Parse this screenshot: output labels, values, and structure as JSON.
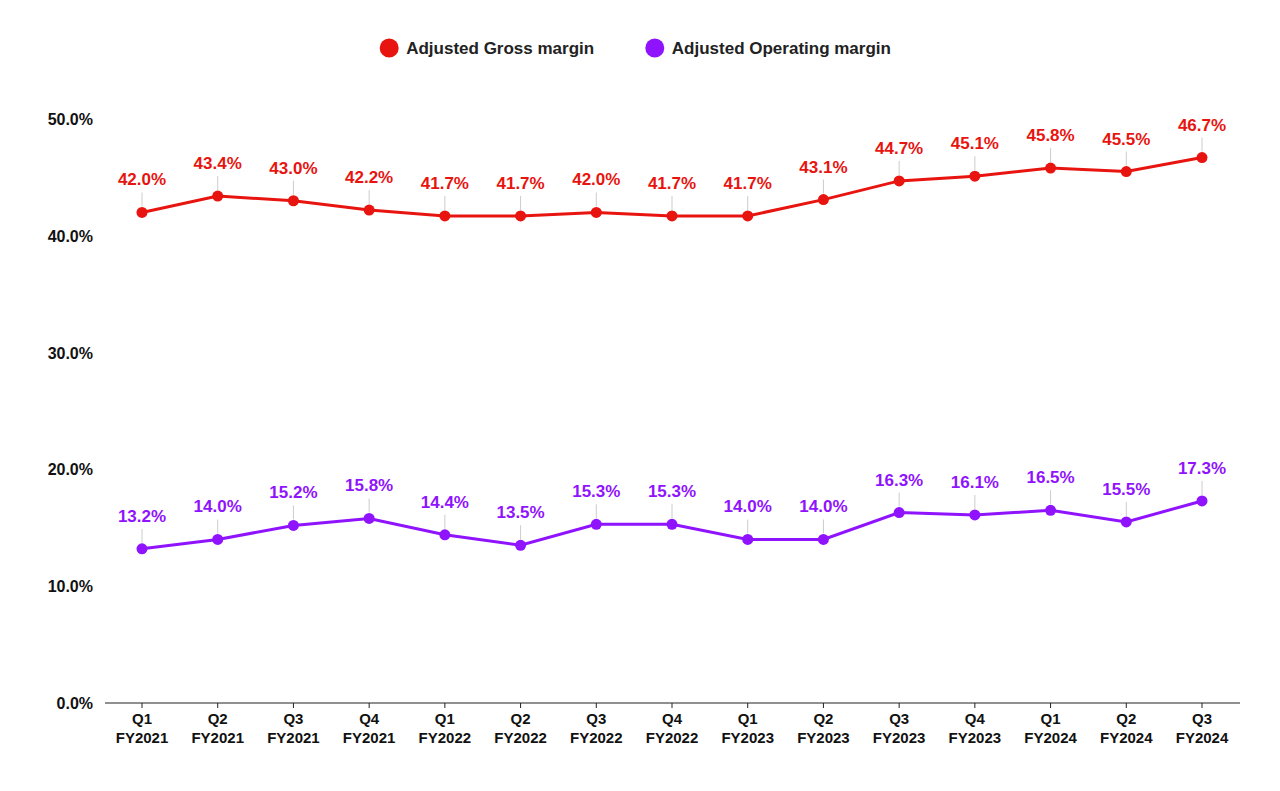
{
  "chart_data": {
    "type": "line",
    "categories": [
      "Q1 FY2021",
      "Q2 FY2021",
      "Q3 FY2021",
      "Q4 FY2021",
      "Q1 FY2022",
      "Q2 FY2022",
      "Q3 FY2022",
      "Q4 FY2022",
      "Q1 FY2023",
      "Q2 FY2023",
      "Q3 FY2023",
      "Q4 FY2023",
      "Q1 FY2024",
      "Q2 FY2024",
      "Q3 FY2024"
    ],
    "series": [
      {
        "name": "Adjusted Gross margin",
        "color": "#e8140f",
        "marker": "circle",
        "values": [
          42.0,
          43.4,
          43.0,
          42.2,
          41.7,
          41.7,
          42.0,
          41.7,
          41.7,
          43.1,
          44.7,
          45.1,
          45.8,
          45.5,
          46.7
        ],
        "value_labels": [
          "42.0%",
          "43.4%",
          "43.0%",
          "42.2%",
          "41.7%",
          "41.7%",
          "42.0%",
          "41.7%",
          "41.7%",
          "43.1%",
          "44.7%",
          "45.1%",
          "45.8%",
          "45.5%",
          "46.7%"
        ]
      },
      {
        "name": "Adjusted Operating margin",
        "color": "#9013fe",
        "marker": "circle",
        "values": [
          13.2,
          14.0,
          15.2,
          15.8,
          14.4,
          13.5,
          15.3,
          15.3,
          14.0,
          14.0,
          16.3,
          16.1,
          16.5,
          15.5,
          17.3
        ],
        "value_labels": [
          "13.2%",
          "14.0%",
          "15.2%",
          "15.8%",
          "14.4%",
          "13.5%",
          "15.3%",
          "15.3%",
          "14.0%",
          "14.0%",
          "16.3%",
          "16.1%",
          "16.5%",
          "15.5%",
          "17.3%"
        ]
      }
    ],
    "ylim": [
      0,
      50
    ],
    "yticks": [
      {
        "value": 0,
        "label": "0.0%"
      },
      {
        "value": 10,
        "label": "10.0%"
      },
      {
        "value": 20,
        "label": "20.0%"
      },
      {
        "value": 30,
        "label": "30.0%"
      },
      {
        "value": 40,
        "label": "40.0%"
      },
      {
        "value": 50,
        "label": "50.0%"
      }
    ],
    "grid": false,
    "legend": "top",
    "data_labels": true
  }
}
